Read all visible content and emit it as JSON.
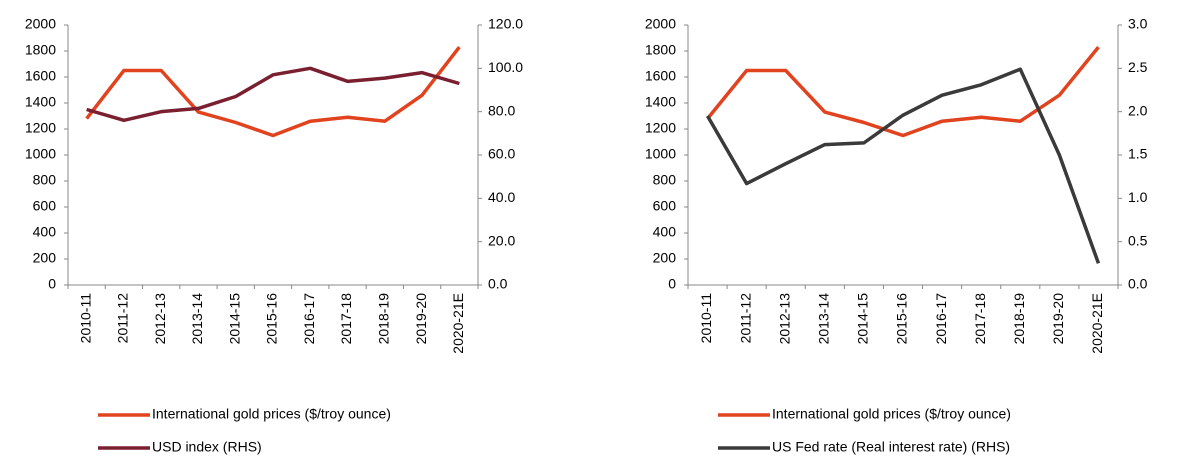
{
  "chart_data": [
    {
      "type": "line",
      "categories": [
        "2010-11",
        "2011-12",
        "2012-13",
        "2013-14",
        "2014-15",
        "2015-16",
        "2016-17",
        "2017-18",
        "2018-19",
        "2019-20",
        "2020-21E"
      ],
      "ylim": [
        0,
        2000
      ],
      "yticks": [
        0,
        200,
        400,
        600,
        800,
        1000,
        1200,
        1400,
        1600,
        1800,
        2000
      ],
      "y2lim": [
        0,
        120
      ],
      "y2ticks": [
        {
          "value": 0,
          "label": "0.0"
        },
        {
          "value": 20,
          "label": "20.0"
        },
        {
          "value": 40,
          "label": "40.0"
        },
        {
          "value": 60,
          "label": "60.0"
        },
        {
          "value": 80,
          "label": "80.0"
        },
        {
          "value": 100,
          "label": "100.0"
        },
        {
          "value": 120,
          "label": "120.0"
        }
      ],
      "series": [
        {
          "name": "International gold prices ($/troy ounce)",
          "color": "#e2431f",
          "values": [
            1280,
            1650,
            1650,
            1330,
            1250,
            1150,
            1260,
            1290,
            1260,
            1460,
            1830
          ]
        },
        {
          "name": "USD index (RHS)",
          "color": "#7a1f2f",
          "axis": "y2",
          "values": [
            81,
            76,
            80,
            81.5,
            87,
            97,
            100,
            94,
            95.5,
            98,
            93
          ]
        }
      ]
    },
    {
      "type": "line",
      "categories": [
        "2010-11",
        "2011-12",
        "2012-13",
        "2013-14",
        "2014-15",
        "2015-16",
        "2016-17",
        "2017-18",
        "2018-19",
        "2019-20",
        "2020-21E"
      ],
      "ylim": [
        0,
        2000
      ],
      "yticks": [
        0,
        200,
        400,
        600,
        800,
        1000,
        1200,
        1400,
        1600,
        1800,
        2000
      ],
      "y2lim": [
        0,
        3
      ],
      "y2ticks": [
        {
          "value": 0,
          "label": "0.0"
        },
        {
          "value": 0.5,
          "label": "0.5"
        },
        {
          "value": 1,
          "label": "1.0"
        },
        {
          "value": 1.5,
          "label": "1.5"
        },
        {
          "value": 2,
          "label": "2.0"
        },
        {
          "value": 2.5,
          "label": "2.5"
        },
        {
          "value": 3,
          "label": "3.0"
        }
      ],
      "series": [
        {
          "name": "International gold prices ($/troy ounce)",
          "color": "#e2431f",
          "values": [
            1280,
            1650,
            1650,
            1330,
            1250,
            1150,
            1260,
            1290,
            1260,
            1460,
            1830
          ]
        },
        {
          "name": "US Fed rate (Real interest rate) (RHS)",
          "color": "#3a3a3a",
          "axis": "y2",
          "values": [
            1.95,
            1.17,
            1.4,
            1.62,
            1.64,
            1.96,
            2.19,
            2.31,
            2.49,
            1.5,
            0.25
          ]
        }
      ]
    }
  ]
}
